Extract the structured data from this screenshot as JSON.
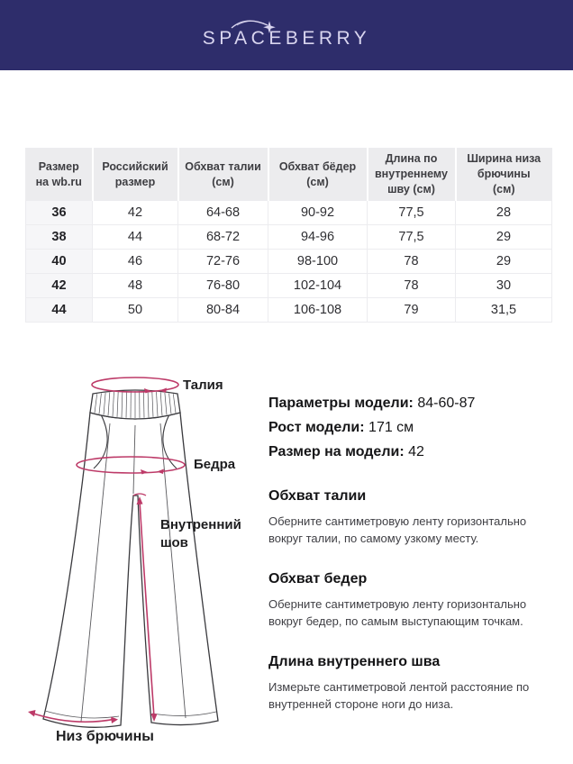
{
  "header": {
    "logo_text": "SPACEBERRY"
  },
  "colors": {
    "header_bg": "#2e2d6b",
    "logo_color": "#d9d5ef",
    "accent_pink": "#bd3a68",
    "table_header_bg": "#ececee",
    "row_label_bg": "#f6f6f8"
  },
  "size_table": {
    "columns": [
      "Размер\nна wb.ru",
      "Российский\nразмер",
      "Обхват талии\n(см)",
      "Обхват бёдер\n(см)",
      "Длина по\nвнутреннему\nшву (см)",
      "Ширина низа\nбрючины\n(см)"
    ],
    "rows": [
      [
        "36",
        "42",
        "64-68",
        "90-92",
        "77,5",
        "28"
      ],
      [
        "38",
        "44",
        "68-72",
        "94-96",
        "77,5",
        "29"
      ],
      [
        "40",
        "46",
        "72-76",
        "98-100",
        "78",
        "29"
      ],
      [
        "42",
        "48",
        "76-80",
        "102-104",
        "78",
        "30"
      ],
      [
        "44",
        "50",
        "80-84",
        "106-108",
        "79",
        "31,5"
      ]
    ]
  },
  "diagram": {
    "labels": {
      "waist": "Талия",
      "hips": "Бедра",
      "inseam_line1": "Внутренний",
      "inseam_line2": "шов",
      "hem": "Низ брючины"
    }
  },
  "model_info": {
    "lines": [
      {
        "label": "Параметры модели:",
        "value": " 84-60-87"
      },
      {
        "label": "Рост модели:",
        "value": " 171 см"
      },
      {
        "label": "Размер на модели:",
        "value": " 42"
      }
    ]
  },
  "measure_sections": [
    {
      "title": "Обхват талии",
      "body": "Оберните сантиметровую ленту горизонтально вокруг талии, по самому узкому месту."
    },
    {
      "title": "Обхват бедер",
      "body": "Оберните сантиметровую ленту горизонтально вокруг бедер, по самым выступающим точкам."
    },
    {
      "title": "Длина внутреннего шва",
      "body": "Измерьте сантиметровой лентой расстояние по внутренней стороне ноги до низа."
    }
  ]
}
